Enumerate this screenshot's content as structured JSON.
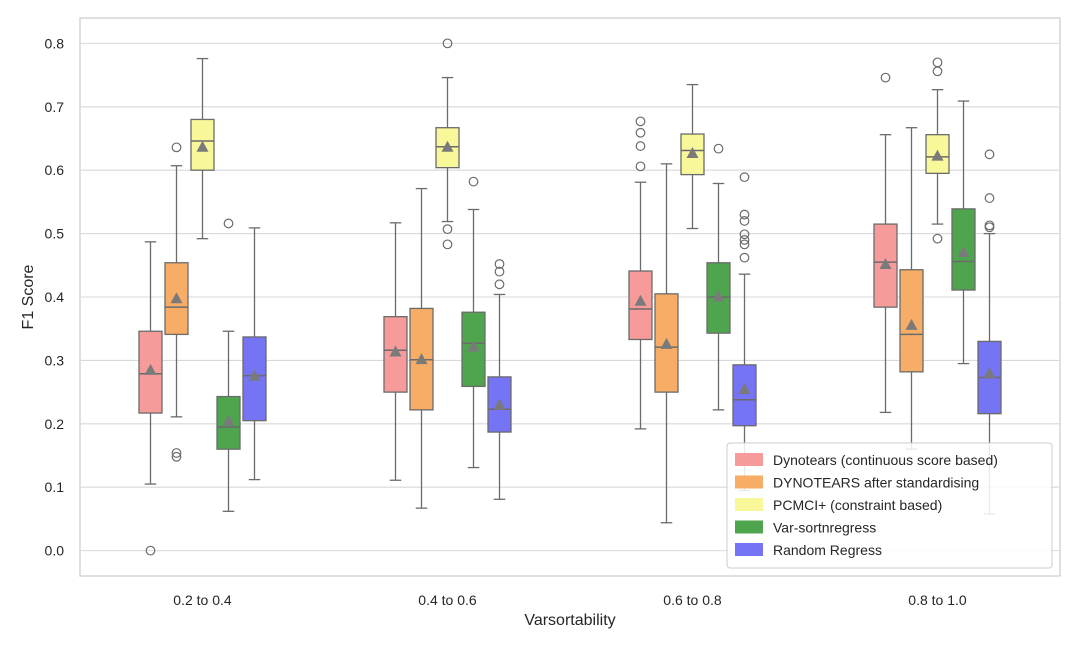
{
  "chart_data": {
    "type": "box",
    "xlabel": "Varsortability",
    "ylabel": "F1 Score",
    "ylim": [
      -0.04,
      0.84
    ],
    "yticks": [
      "0.0",
      "0.1",
      "0.2",
      "0.3",
      "0.4",
      "0.5",
      "0.6",
      "0.7",
      "0.8"
    ],
    "categories": [
      "0.2 to 0.4",
      "0.4 to 0.6",
      "0.6 to 0.8",
      "0.8 to 1.0"
    ],
    "grid": "horizontal",
    "legend_position": "bottom-right",
    "series": [
      {
        "name": "Dynotears (continuous score based)",
        "color": "#f79a9a",
        "boxes": [
          {
            "whislo": 0.105,
            "q1": 0.217,
            "med": 0.279,
            "q3": 0.346,
            "whishi": 0.487,
            "mean": 0.285,
            "fliers": [
              0.0
            ]
          },
          {
            "whislo": 0.111,
            "q1": 0.25,
            "med": 0.316,
            "q3": 0.369,
            "whishi": 0.517,
            "mean": 0.314,
            "fliers": []
          },
          {
            "whislo": 0.192,
            "q1": 0.333,
            "med": 0.381,
            "q3": 0.441,
            "whishi": 0.581,
            "mean": 0.394,
            "fliers": [
              0.606,
              0.638,
              0.659,
              0.677
            ]
          },
          {
            "whislo": 0.218,
            "q1": 0.384,
            "med": 0.455,
            "q3": 0.515,
            "whishi": 0.656,
            "mean": 0.452,
            "fliers": [
              0.746
            ]
          }
        ]
      },
      {
        "name": "DYNOTEARS after standardising",
        "color": "#f7ad66",
        "boxes": [
          {
            "whislo": 0.211,
            "q1": 0.341,
            "med": 0.384,
            "q3": 0.454,
            "whishi": 0.607,
            "mean": 0.398,
            "fliers": [
              0.148,
              0.154,
              0.636
            ]
          },
          {
            "whislo": 0.067,
            "q1": 0.222,
            "med": 0.301,
            "q3": 0.382,
            "whishi": 0.571,
            "mean": 0.302,
            "fliers": []
          },
          {
            "whislo": 0.044,
            "q1": 0.25,
            "med": 0.321,
            "q3": 0.405,
            "whishi": 0.61,
            "mean": 0.326,
            "fliers": []
          },
          {
            "whislo": 0.16,
            "q1": 0.282,
            "med": 0.341,
            "q3": 0.443,
            "whishi": 0.667,
            "mean": 0.356,
            "fliers": []
          }
        ]
      },
      {
        "name": "PCMCI+ (constraint based)",
        "color": "#f8f79a",
        "boxes": [
          {
            "whislo": 0.492,
            "q1": 0.6,
            "med": 0.646,
            "q3": 0.68,
            "whishi": 0.776,
            "mean": 0.637,
            "fliers": []
          },
          {
            "whislo": 0.519,
            "q1": 0.604,
            "med": 0.637,
            "q3": 0.667,
            "whishi": 0.746,
            "mean": 0.637,
            "fliers": [
              0.483,
              0.507,
              0.8
            ]
          },
          {
            "whislo": 0.508,
            "q1": 0.593,
            "med": 0.631,
            "q3": 0.657,
            "whishi": 0.735,
            "mean": 0.627,
            "fliers": []
          },
          {
            "whislo": 0.515,
            "q1": 0.595,
            "med": 0.621,
            "q3": 0.656,
            "whishi": 0.727,
            "mean": 0.623,
            "fliers": [
              0.492,
              0.756,
              0.77
            ]
          }
        ]
      },
      {
        "name": "Var-sortnregress",
        "color": "#4ea54e",
        "boxes": [
          {
            "whislo": 0.062,
            "q1": 0.16,
            "med": 0.195,
            "q3": 0.243,
            "whishi": 0.346,
            "mean": 0.205,
            "fliers": [
              0.516
            ]
          },
          {
            "whislo": 0.131,
            "q1": 0.259,
            "med": 0.327,
            "q3": 0.376,
            "whishi": 0.538,
            "mean": 0.322,
            "fliers": [
              0.582
            ]
          },
          {
            "whislo": 0.222,
            "q1": 0.343,
            "med": 0.4,
            "q3": 0.454,
            "whishi": 0.579,
            "mean": 0.401,
            "fliers": [
              0.634
            ]
          },
          {
            "whislo": 0.295,
            "q1": 0.411,
            "med": 0.456,
            "q3": 0.539,
            "whishi": 0.709,
            "mean": 0.471,
            "fliers": []
          }
        ]
      },
      {
        "name": "Random Regress",
        "color": "#7474f5",
        "boxes": [
          {
            "whislo": 0.112,
            "q1": 0.205,
            "med": 0.276,
            "q3": 0.337,
            "whishi": 0.509,
            "mean": 0.276,
            "fliers": []
          },
          {
            "whislo": 0.081,
            "q1": 0.187,
            "med": 0.223,
            "q3": 0.274,
            "whishi": 0.404,
            "mean": 0.23,
            "fliers": [
              0.42,
              0.44,
              0.452
            ]
          },
          {
            "whislo": 0.095,
            "q1": 0.197,
            "med": 0.238,
            "q3": 0.293,
            "whishi": 0.436,
            "mean": 0.255,
            "fliers": [
              0.462,
              0.483,
              0.49,
              0.499,
              0.52,
              0.53,
              0.589
            ]
          },
          {
            "whislo": 0.058,
            "q1": 0.216,
            "med": 0.273,
            "q3": 0.33,
            "whishi": 0.5,
            "mean": 0.28,
            "fliers": [
              0.51,
              0.513,
              0.556,
              0.625
            ]
          }
        ]
      }
    ]
  }
}
